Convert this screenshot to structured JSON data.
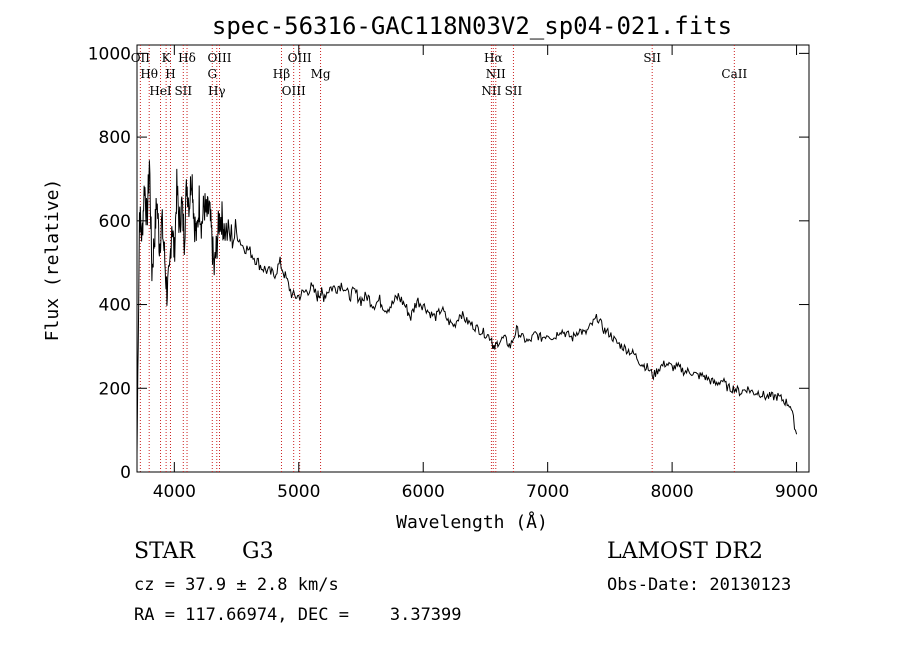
{
  "chart_data": {
    "type": "line",
    "title": "spec-56316-GAC118N03V2_sp04-021.fits",
    "xlabel": "Wavelength (Å)",
    "ylabel": "Flux (relative)",
    "xlim": [
      3700,
      9100
    ],
    "ylim": [
      0,
      1020
    ],
    "x_ticks": [
      4000,
      5000,
      6000,
      7000,
      8000,
      9000
    ],
    "y_ticks": [
      0,
      200,
      400,
      600,
      800,
      1000
    ],
    "grid": false,
    "line_color": "#000000",
    "marker_color": "#cc2222",
    "spectral_lines": [
      {
        "label": "OII",
        "wavelength": 3727
      },
      {
        "label": "Hθ",
        "wavelength": 3798
      },
      {
        "label": "HeI",
        "wavelength": 3889
      },
      {
        "label": "K",
        "wavelength": 3934
      },
      {
        "label": "H",
        "wavelength": 3969
      },
      {
        "label": "SII",
        "wavelength": 4072
      },
      {
        "label": "Hδ",
        "wavelength": 4102
      },
      {
        "label": "G",
        "wavelength": 4305
      },
      {
        "label": "Hγ",
        "wavelength": 4341
      },
      {
        "label": "OIII",
        "wavelength": 4363
      },
      {
        "label": "Hβ",
        "wavelength": 4861
      },
      {
        "label": "OIII",
        "wavelength": 4959
      },
      {
        "label": "OIII",
        "wavelength": 5007
      },
      {
        "label": "Mg",
        "wavelength": 5175
      },
      {
        "label": "NII",
        "wavelength": 6548
      },
      {
        "label": "Hα",
        "wavelength": 6563
      },
      {
        "label": "NII",
        "wavelength": 6583
      },
      {
        "label": "SII",
        "wavelength": 6725
      },
      {
        "label": "SII",
        "wavelength": 7840
      },
      {
        "label": "CaII",
        "wavelength": 8500
      }
    ],
    "series": [
      {
        "x": [
          3700,
          3720,
          3740,
          3760,
          3780,
          3800,
          3820,
          3840,
          3860,
          3880,
          3900,
          3920,
          3940,
          3960,
          3980,
          4000,
          4020,
          4040,
          4060,
          4080,
          4100,
          4120,
          4140,
          4160,
          4180,
          4200,
          4220,
          4240,
          4260,
          4280,
          4300,
          4320,
          4340,
          4360,
          4380,
          4400,
          4450,
          4500,
          4550,
          4600,
          4650,
          4700,
          4750,
          4800,
          4850,
          4900,
          4950,
          5000,
          5050,
          5100,
          5150,
          5175,
          5200,
          5250,
          5300,
          5350,
          5400,
          5450,
          5500,
          5550,
          5600,
          5650,
          5700,
          5750,
          5800,
          5850,
          5900,
          5950,
          6000,
          6050,
          6100,
          6150,
          6200,
          6250,
          6300,
          6350,
          6400,
          6450,
          6500,
          6550,
          6563,
          6600,
          6650,
          6700,
          6750,
          6800,
          6850,
          6900,
          6950,
          7000,
          7050,
          7100,
          7150,
          7200,
          7250,
          7300,
          7350,
          7400,
          7450,
          7500,
          7550,
          7600,
          7650,
          7700,
          7750,
          7800,
          7850,
          7900,
          7950,
          8000,
          8050,
          8100,
          8150,
          8200,
          8250,
          8300,
          8350,
          8400,
          8450,
          8500,
          8550,
          8600,
          8650,
          8700,
          8750,
          8800,
          8850,
          8900,
          8950,
          9000
        ],
        "y": [
          40,
          620,
          560,
          690,
          600,
          740,
          480,
          560,
          650,
          540,
          600,
          520,
          430,
          460,
          600,
          520,
          680,
          590,
          640,
          560,
          690,
          640,
          720,
          600,
          560,
          650,
          590,
          640,
          610,
          630,
          560,
          480,
          540,
          600,
          610,
          580,
          560,
          570,
          540,
          530,
          510,
          490,
          480,
          470,
          500,
          460,
          420,
          420,
          430,
          440,
          420,
          430,
          420,
          440,
          440,
          450,
          420,
          430,
          410,
          420,
          400,
          410,
          390,
          400,
          420,
          400,
          370,
          410,
          400,
          380,
          370,
          390,
          360,
          350,
          380,
          360,
          350,
          340,
          330,
          320,
          290,
          310,
          320,
          300,
          340,
          320,
          310,
          330,
          320,
          330,
          320,
          340,
          330,
          320,
          340,
          330,
          350,
          370,
          340,
          330,
          310,
          300,
          290,
          280,
          260,
          250,
          230,
          250,
          260,
          250,
          250,
          240,
          240,
          230,
          230,
          220,
          210,
          220,
          200,
          200,
          190,
          200,
          190,
          190,
          180,
          180,
          180,
          170,
          160,
          90
        ]
      }
    ]
  },
  "info": {
    "object_class": "STAR",
    "subclass": "G3",
    "survey": "LAMOST DR2",
    "redshift": "cz = 37.9 ± 2.8 km/s",
    "obs_date": "Obs-Date: 20130123",
    "coords": "RA = 117.66974, DEC =    3.37399"
  }
}
